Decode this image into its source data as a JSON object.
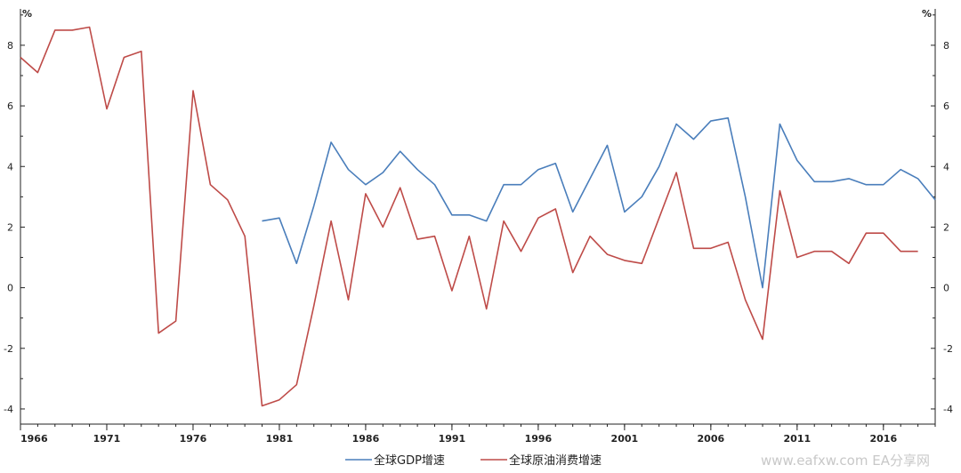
{
  "chart_data": {
    "type": "line",
    "unit_left": "%",
    "unit_right": "%",
    "x_min": 1966,
    "x_max": 2019,
    "x_ticks": [
      1966,
      1971,
      1976,
      1981,
      1986,
      1991,
      1996,
      2001,
      2006,
      2011,
      2016
    ],
    "ylim": [
      -4.5,
      9.2
    ],
    "y_ticks": [
      -4,
      -2,
      0,
      2,
      4,
      6,
      8
    ],
    "series": [
      {
        "name": "全球GDP增速",
        "color": "#4a7ebb",
        "points": [
          [
            1980,
            2.2
          ],
          [
            1981,
            2.3
          ],
          [
            1982,
            0.8
          ],
          [
            1983,
            2.7
          ],
          [
            1984,
            4.8
          ],
          [
            1985,
            3.9
          ],
          [
            1986,
            3.4
          ],
          [
            1987,
            3.8
          ],
          [
            1988,
            4.5
          ],
          [
            1989,
            3.9
          ],
          [
            1990,
            3.4
          ],
          [
            1991,
            2.4
          ],
          [
            1992,
            2.4
          ],
          [
            1993,
            2.2
          ],
          [
            1994,
            3.4
          ],
          [
            1995,
            3.4
          ],
          [
            1996,
            3.9
          ],
          [
            1997,
            4.1
          ],
          [
            1998,
            2.5
          ],
          [
            1999,
            3.6
          ],
          [
            2000,
            4.7
          ],
          [
            2001,
            2.5
          ],
          [
            2002,
            3.0
          ],
          [
            2003,
            4.0
          ],
          [
            2004,
            5.4
          ],
          [
            2005,
            4.9
          ],
          [
            2006,
            5.5
          ],
          [
            2007,
            5.6
          ],
          [
            2008,
            3.0
          ],
          [
            2009,
            0.0
          ],
          [
            2010,
            5.4
          ],
          [
            2011,
            4.2
          ],
          [
            2012,
            3.5
          ],
          [
            2013,
            3.5
          ],
          [
            2014,
            3.6
          ],
          [
            2015,
            3.4
          ],
          [
            2016,
            3.4
          ],
          [
            2017,
            3.9
          ],
          [
            2018,
            3.6
          ],
          [
            2019,
            2.9
          ]
        ]
      },
      {
        "name": "全球原油消费增速",
        "color": "#be4b48",
        "points": [
          [
            1966,
            7.6
          ],
          [
            1967,
            7.1
          ],
          [
            1968,
            8.5
          ],
          [
            1969,
            8.5
          ],
          [
            1970,
            8.6
          ],
          [
            1971,
            5.9
          ],
          [
            1972,
            7.6
          ],
          [
            1973,
            7.8
          ],
          [
            1974,
            -1.5
          ],
          [
            1975,
            -1.1
          ],
          [
            1976,
            6.5
          ],
          [
            1977,
            3.4
          ],
          [
            1978,
            2.9
          ],
          [
            1979,
            1.7
          ],
          [
            1980,
            -3.9
          ],
          [
            1981,
            -3.7
          ],
          [
            1982,
            -3.2
          ],
          [
            1983,
            -0.6
          ],
          [
            1984,
            2.2
          ],
          [
            1985,
            -0.4
          ],
          [
            1986,
            3.1
          ],
          [
            1987,
            2.0
          ],
          [
            1988,
            3.3
          ],
          [
            1989,
            1.6
          ],
          [
            1990,
            1.7
          ],
          [
            1991,
            -0.1
          ],
          [
            1992,
            1.7
          ],
          [
            1993,
            -0.7
          ],
          [
            1994,
            2.2
          ],
          [
            1995,
            1.2
          ],
          [
            1996,
            2.3
          ],
          [
            1997,
            2.6
          ],
          [
            1998,
            0.5
          ],
          [
            1999,
            1.7
          ],
          [
            2000,
            1.1
          ],
          [
            2001,
            0.9
          ],
          [
            2002,
            0.8
          ],
          [
            2003,
            2.3
          ],
          [
            2004,
            3.8
          ],
          [
            2005,
            1.3
          ],
          [
            2006,
            1.3
          ],
          [
            2007,
            1.5
          ],
          [
            2008,
            -0.4
          ],
          [
            2009,
            -1.7
          ],
          [
            2010,
            3.2
          ],
          [
            2011,
            1.0
          ],
          [
            2012,
            1.2
          ],
          [
            2013,
            1.2
          ],
          [
            2014,
            0.8
          ],
          [
            2015,
            1.8
          ],
          [
            2016,
            1.8
          ],
          [
            2017,
            1.2
          ],
          [
            2018,
            1.2
          ]
        ]
      }
    ],
    "legend_position": "bottom-center"
  },
  "watermark": "www.eafxw.com EA分享网"
}
